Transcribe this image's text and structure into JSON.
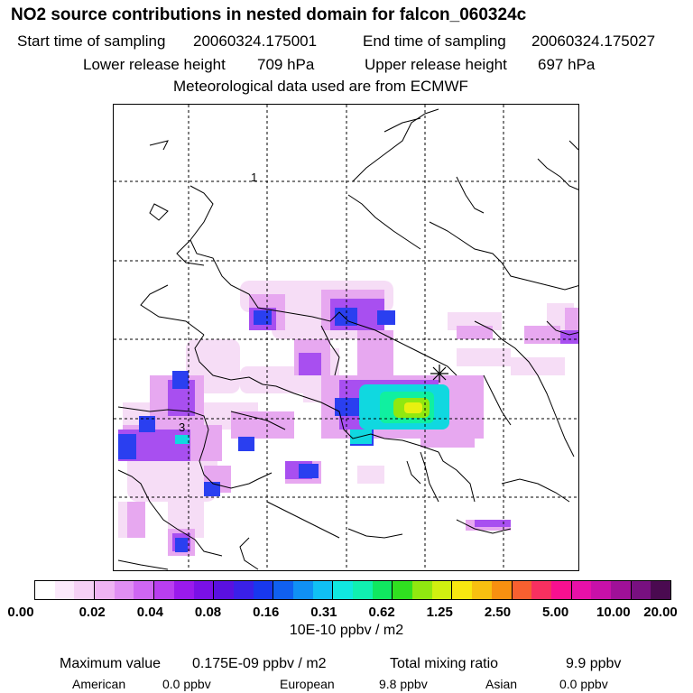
{
  "header": {
    "title": "NO2 source contributions in nested domain for falcon_060324c",
    "start_label": "Start time of sampling",
    "start_value": "20060324.175001",
    "end_label": "End time of sampling",
    "end_value": "20060324.175027",
    "lower_label": "Lower release height",
    "lower_value": "709 hPa",
    "upper_label": "Upper release height",
    "upper_value": "697 hPa",
    "met_text": "Meteorological data used are from ECMWF"
  },
  "map": {
    "grid_labels": [
      "1",
      "3"
    ]
  },
  "colorbar": {
    "colors": [
      "#ffffff",
      "#fbe9fb",
      "#f5d0f5",
      "#efb3f3",
      "#e08ef3",
      "#cf66f3",
      "#b93ef0",
      "#9a1aec",
      "#7a10e6",
      "#5a10e0",
      "#3a20e8",
      "#1838ee",
      "#1060f0",
      "#1090f4",
      "#10c0f4",
      "#10e8e0",
      "#10f0b0",
      "#10e860",
      "#30e020",
      "#90e810",
      "#d0f010",
      "#f8e810",
      "#f8c010",
      "#f89010",
      "#f86030",
      "#f83060",
      "#f81090",
      "#e810a8",
      "#c810a8",
      "#a01098",
      "#781080",
      "#4a0a50"
    ],
    "tick_labels": [
      "0.00",
      "0.02",
      "0.04",
      "0.08",
      "0.16",
      "0.31",
      "0.62",
      "1.25",
      "2.50",
      "5.00",
      "10.00",
      "20.00"
    ],
    "unit": "10E-10 ppbv / m2"
  },
  "stats": {
    "max_label": "Maximum value",
    "max_value": "0.175E-09 ppbv / m2",
    "total_label": "Total mixing ratio",
    "total_value": "9.9 ppbv",
    "american_label": "American",
    "american_value": "0.0 ppbv",
    "european_label": "European",
    "european_value": "9.8 ppbv",
    "asian_label": "Asian",
    "asian_value": "0.0 ppbv"
  }
}
